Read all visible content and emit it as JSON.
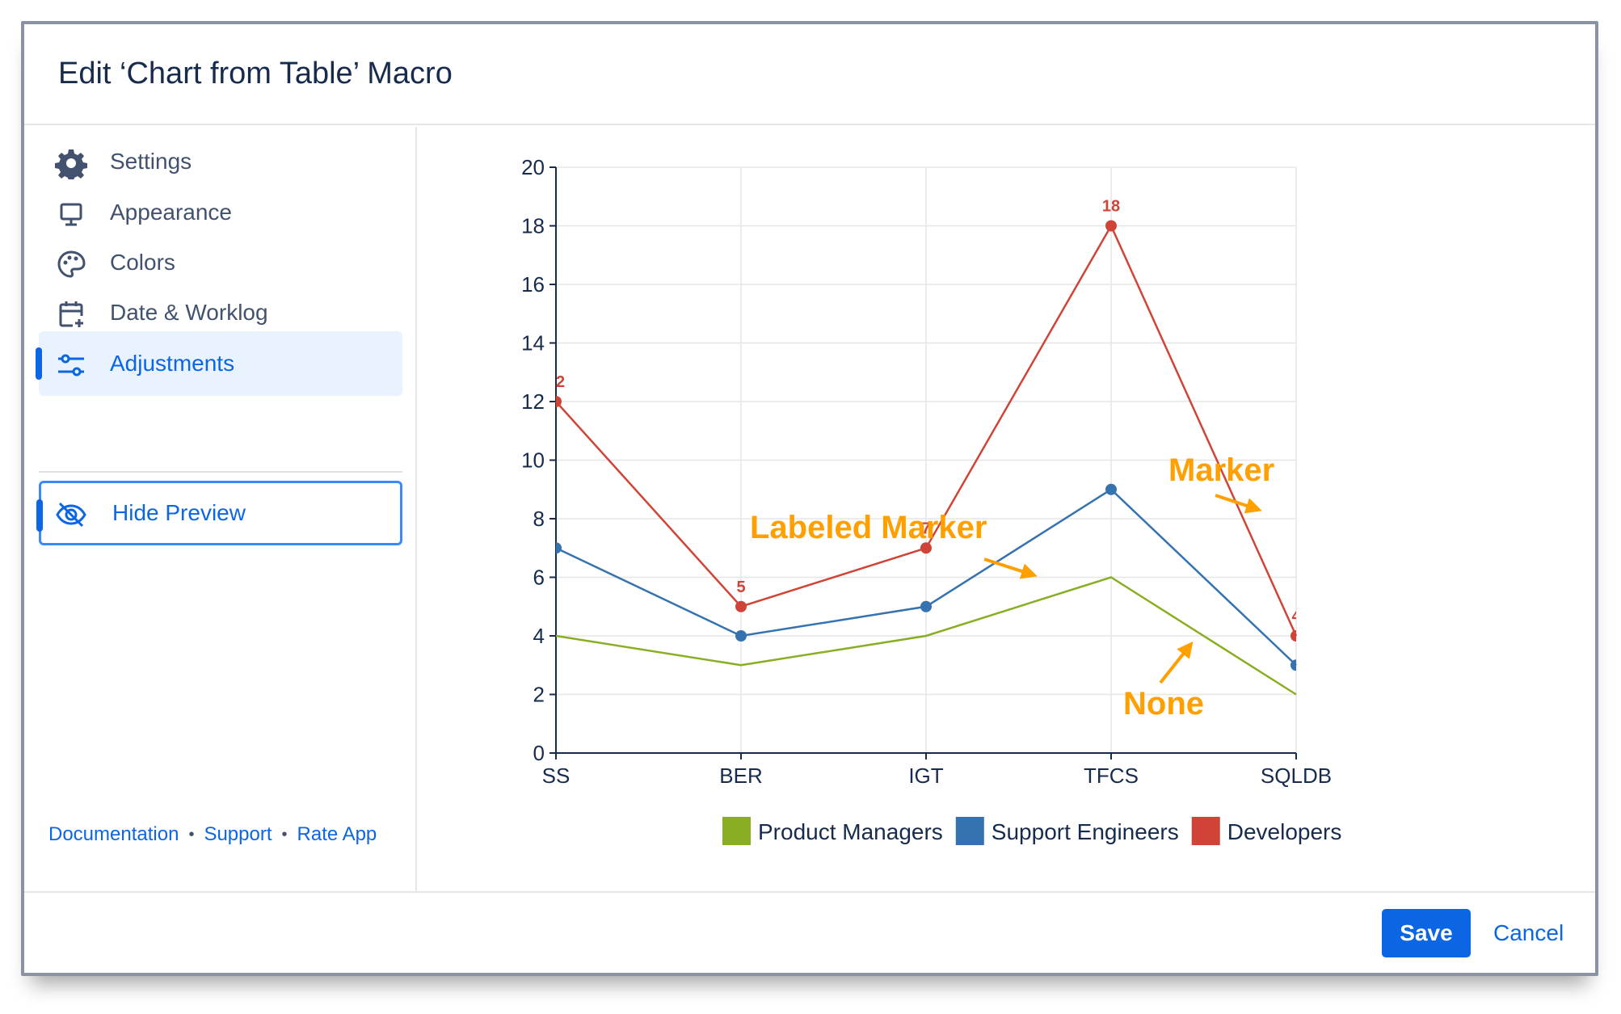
{
  "dialog": {
    "title": "Edit ‘Chart from Table’ Macro"
  },
  "sidebar": {
    "items": [
      {
        "label": "Settings",
        "icon": "gear-icon"
      },
      {
        "label": "Appearance",
        "icon": "monitor-icon"
      },
      {
        "label": "Colors",
        "icon": "palette-icon"
      },
      {
        "label": "Date & Worklog",
        "icon": "calendar-plus-icon"
      },
      {
        "label": "Adjustments",
        "icon": "sliders-icon",
        "active": true
      }
    ],
    "hide_preview": {
      "label": "Hide Preview",
      "icon": "eye-off-icon"
    },
    "links": [
      "Documentation",
      "Support",
      "Rate App"
    ],
    "link_separator": "•"
  },
  "footer": {
    "save_label": "Save",
    "cancel_label": "Cancel"
  },
  "colors": {
    "accent": "#0c66e4",
    "annotation": "#ff9f00",
    "active_bg": "#e9f2ff"
  },
  "chart_data": {
    "type": "line",
    "categories": [
      "SS",
      "BER",
      "IGT",
      "TFCS",
      "SQLDB"
    ],
    "ylim": [
      0,
      20
    ],
    "yticks": [
      0,
      2,
      4,
      6,
      8,
      10,
      12,
      14,
      16,
      18,
      20
    ],
    "grid": true,
    "legend_position": "bottom",
    "series": [
      {
        "name": "Product Managers",
        "values": [
          4,
          3,
          4,
          6,
          2
        ],
        "color": "#8aae23",
        "marker": "none",
        "labels": false
      },
      {
        "name": "Support Engineers",
        "values": [
          7,
          4,
          5,
          9,
          3
        ],
        "color": "#3572b0",
        "marker": "circle",
        "labels": false
      },
      {
        "name": "Developers",
        "values": [
          12,
          5,
          7,
          18,
          4
        ],
        "color": "#d04437",
        "marker": "circle",
        "labels": true
      }
    ],
    "annotations": [
      {
        "text": "Labeled Marker"
      },
      {
        "text": "Marker"
      },
      {
        "text": "None"
      }
    ]
  }
}
